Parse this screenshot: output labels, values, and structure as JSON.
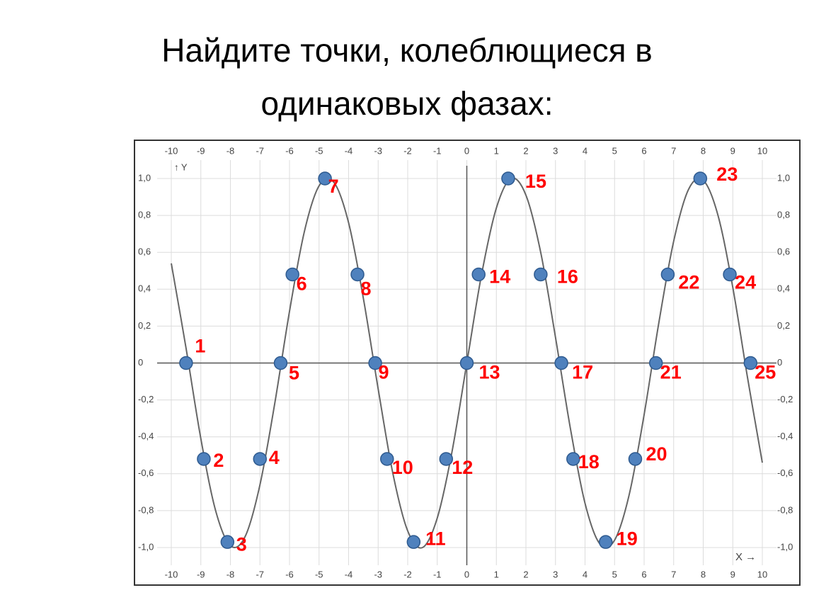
{
  "chart_data": {
    "type": "line",
    "title": [
      "Найдите точки, колеблющиеся в",
      "одинаковых фазах:"
    ],
    "xlabel": "X →",
    "ylabel": "↑ Y",
    "xlim": [
      -10,
      10
    ],
    "ylim": [
      -1,
      1
    ],
    "xticks": [
      -10,
      -9,
      -8,
      -7,
      -6,
      -5,
      -4,
      -3,
      -2,
      -1,
      0,
      1,
      2,
      3,
      4,
      5,
      6,
      7,
      8,
      9,
      10
    ],
    "yticks": [
      {
        "value": -1.0,
        "label": "-1,0"
      },
      {
        "value": -0.8,
        "label": "-0,8"
      },
      {
        "value": -0.6,
        "label": "-0,6"
      },
      {
        "value": -0.4,
        "label": "-0,4"
      },
      {
        "value": -0.2,
        "label": "-0,2"
      },
      0,
      {
        "value": 0.2,
        "label": "0,2"
      },
      {
        "value": 0.4,
        "label": "0,4"
      },
      {
        "value": 0.6,
        "label": "0,6"
      },
      {
        "value": 0.8,
        "label": "0,8"
      },
      {
        "value": 1.0,
        "label": "1,0"
      }
    ],
    "grid": true,
    "series": [
      {
        "color": "#666666",
        "x": [
          -10,
          -9.5,
          -9,
          -8.5,
          -8,
          -7.5,
          -7,
          -6.5,
          -6,
          -5.5,
          -5,
          -4.5,
          -4,
          -3.5,
          -3,
          -2.5,
          -2,
          -1.5,
          -1,
          -0.5,
          0,
          0.5,
          1,
          1.5,
          2,
          2.5,
          3,
          3.5,
          4,
          4.5,
          5,
          5.5,
          6,
          6.5,
          7,
          7.5,
          8,
          8.5,
          9,
          9.5,
          10
        ],
        "values": [
          0.54,
          0.08,
          -0.41,
          -0.8,
          -0.99,
          -0.94,
          -0.66,
          -0.22,
          0.28,
          0.71,
          0.96,
          0.98,
          0.76,
          0.35,
          -0.14,
          -0.6,
          -0.91,
          -1.0,
          -0.84,
          -0.48,
          0,
          0.48,
          0.84,
          1.0,
          0.91,
          0.6,
          0.14,
          -0.35,
          -0.76,
          -0.98,
          -0.96,
          -0.71,
          -0.28,
          0.22,
          0.66,
          0.94,
          0.99,
          0.8,
          0.41,
          -0.08,
          -0.54
        ]
      },
      {
        "color": "#4f81bd",
        "label_color": "#ff0000",
        "x": [
          -9.5,
          -8.9,
          -8.1,
          -7.0,
          -6.3,
          -5.9,
          -4.8,
          -3.7,
          -3.1,
          -2.7,
          -1.8,
          -0.7,
          0,
          0.4,
          1.4,
          2.5,
          3.2,
          3.6,
          4.7,
          5.7,
          6.4,
          6.8,
          7.9,
          8.9,
          9.6
        ],
        "values": [
          0,
          -0.52,
          -0.97,
          -0.52,
          0,
          0.48,
          1.0,
          0.48,
          0,
          -0.52,
          -0.97,
          -0.52,
          0,
          0.48,
          1.0,
          0.48,
          0,
          -0.52,
          -0.97,
          -0.52,
          0,
          0.48,
          1.0,
          0.48,
          0
        ],
        "labels": [
          "1",
          "2",
          "3",
          "4",
          "5",
          "6",
          "7",
          "8",
          "9",
          "10",
          "11",
          "12",
          "13",
          "14",
          "15",
          "16",
          "17",
          "18",
          "19",
          "20",
          "21",
          "22",
          "23",
          "24",
          "25"
        ]
      }
    ]
  }
}
